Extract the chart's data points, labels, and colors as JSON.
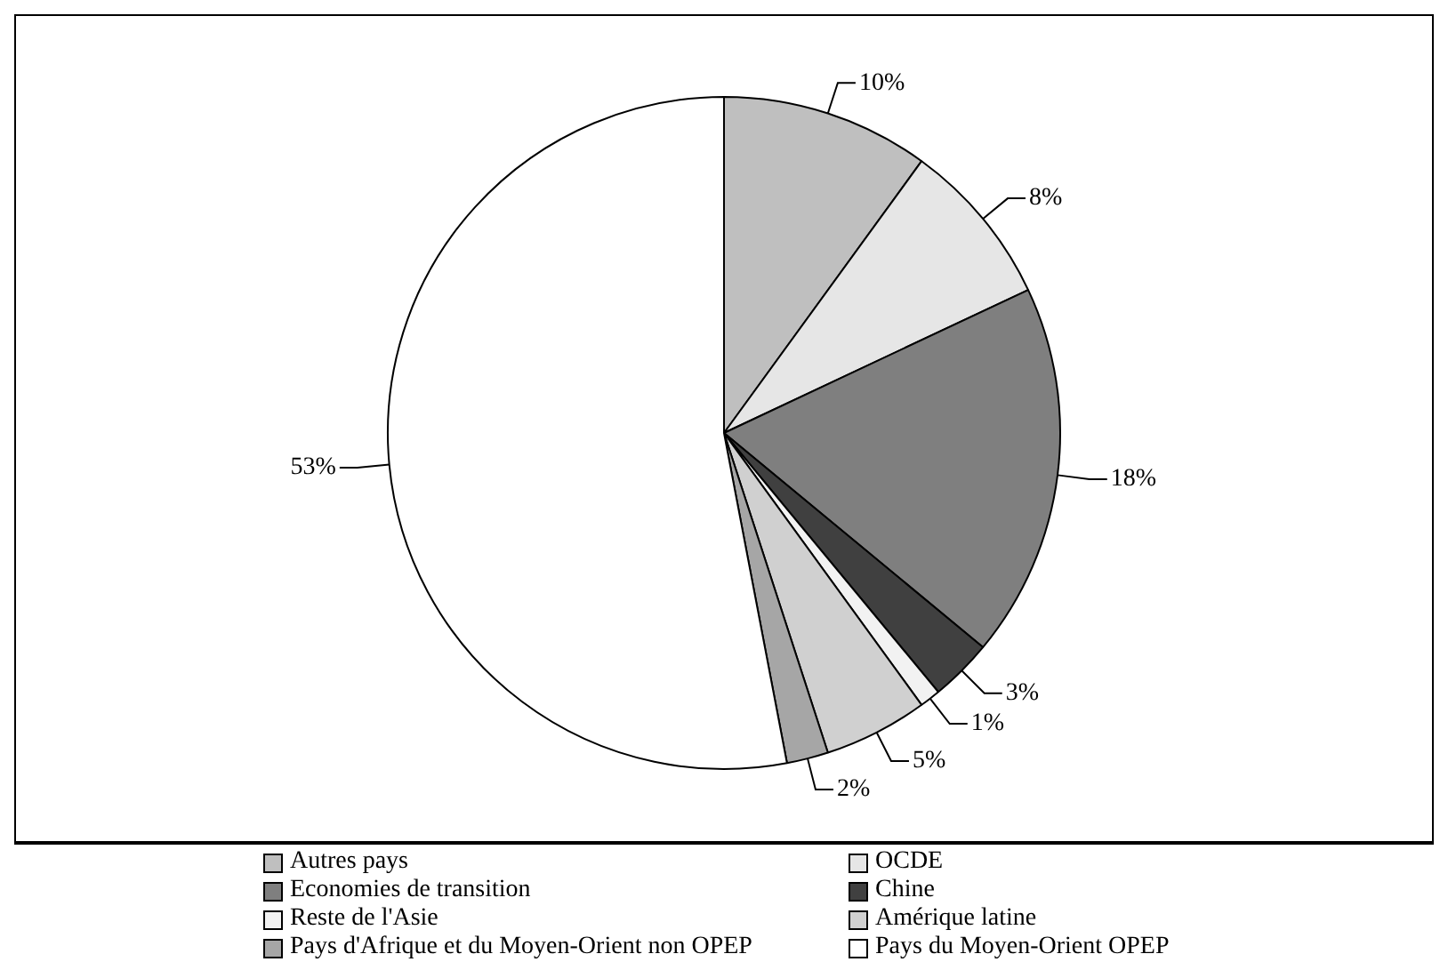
{
  "chart_data": {
    "type": "pie",
    "categories": [
      "Autres pays",
      "OCDE",
      "Economies de transition",
      "Chine",
      "Reste de l'Asie",
      "Amérique latine",
      "Pays d'Afrique et du Moyen-Orient non OPEP",
      "Pays du Moyen-Orient OPEP"
    ],
    "values": [
      10,
      8,
      18,
      3,
      1,
      5,
      2,
      53
    ],
    "colors": [
      "#bfbfbf",
      "#e6e6e6",
      "#7f7f7f",
      "#404040",
      "#f2f2f2",
      "#d0d0d0",
      "#a6a6a6",
      "#ffffff"
    ],
    "value_labels": [
      "10%",
      "8%",
      "18%",
      "3%",
      "1%",
      "5%",
      "2%",
      "53%"
    ],
    "legend": "bottom"
  }
}
